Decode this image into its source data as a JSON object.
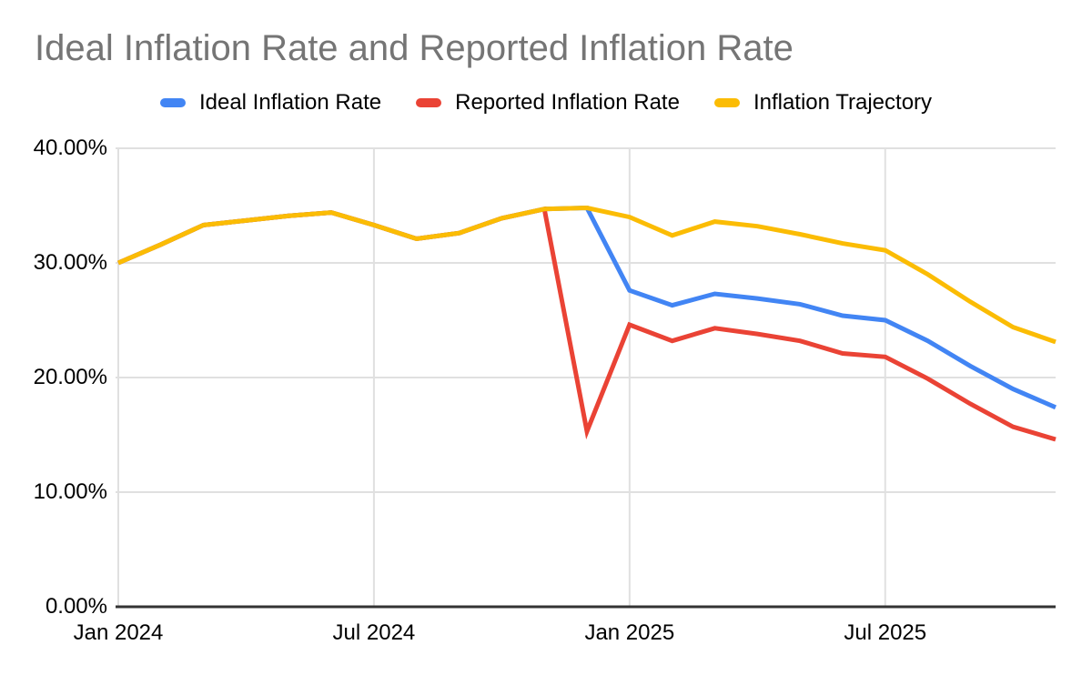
{
  "chart": {
    "title": "Ideal Inflation Rate and Reported Inflation Rate"
  },
  "legend": {
    "position": "top",
    "items": [
      {
        "label": "Ideal Inflation Rate",
        "color": "#4285F4"
      },
      {
        "label": "Reported Inflation Rate",
        "color": "#EA4335"
      },
      {
        "label": "Inflation Trajectory",
        "color": "#FBBC04"
      }
    ]
  },
  "chart_data": {
    "type": "line",
    "title": "Ideal Inflation Rate and Reported Inflation Rate",
    "x": [
      "Jan 2024",
      "Feb 2024",
      "Mar 2024",
      "Apr 2024",
      "May 2024",
      "Jun 2024",
      "Jul 2024",
      "Aug 2024",
      "Sep 2024",
      "Oct 2024",
      "Nov 2024",
      "Dec 2024",
      "Jan 2025",
      "Feb 2025",
      "Mar 2025",
      "Apr 2025",
      "May 2025",
      "Jun 2025",
      "Jul 2025",
      "Aug 2025",
      "Sep 2025",
      "Oct 2025",
      "Nov 2025"
    ],
    "series": [
      {
        "name": "Ideal Inflation Rate",
        "color": "#4285F4",
        "values": [
          30.0,
          31.6,
          33.3,
          33.7,
          34.1,
          34.4,
          33.3,
          32.1,
          32.6,
          33.9,
          34.7,
          34.8,
          27.6,
          26.3,
          27.3,
          26.9,
          26.4,
          25.4,
          25.0,
          23.2,
          21.0,
          19.0,
          17.4
        ]
      },
      {
        "name": "Reported Inflation Rate",
        "color": "#EA4335",
        "values": [
          30.0,
          31.6,
          33.3,
          33.7,
          34.1,
          34.4,
          33.3,
          32.1,
          32.6,
          33.9,
          34.7,
          15.3,
          24.6,
          23.2,
          24.3,
          23.8,
          23.2,
          22.1,
          21.8,
          19.9,
          17.7,
          15.7,
          14.6
        ]
      },
      {
        "name": "Inflation Trajectory",
        "color": "#FBBC04",
        "values": [
          30.0,
          31.6,
          33.3,
          33.7,
          34.1,
          34.4,
          33.3,
          32.1,
          32.6,
          33.9,
          34.7,
          34.8,
          34.0,
          32.4,
          33.6,
          33.2,
          32.5,
          31.7,
          31.1,
          29.0,
          26.6,
          24.4,
          23.1
        ]
      }
    ],
    "y_axis": {
      "min": 0,
      "max": 40,
      "tick_values": [
        0,
        10,
        20,
        30,
        40
      ],
      "tick_labels": [
        "0.00%",
        "10.00%",
        "20.00%",
        "30.00%",
        "40.00%"
      ],
      "format": "percent"
    },
    "x_axis": {
      "tick_indices": [
        0,
        6,
        12,
        18
      ],
      "tick_labels": [
        "Jan 2024",
        "Jul 2024",
        "Jan 2025",
        "Jul 2025"
      ]
    },
    "grid": true,
    "legend_position": "top",
    "notes": "Ideal Inflation Rate overlaps Inflation Trajectory through Dec 2024; Reported Inflation Rate overlaps through Nov 2024."
  },
  "colors": {
    "background": "#FFFFFF",
    "gridline": "#E0E0E0",
    "axis_line": "#333333",
    "title_text": "#757575",
    "label_text": "#000000"
  }
}
